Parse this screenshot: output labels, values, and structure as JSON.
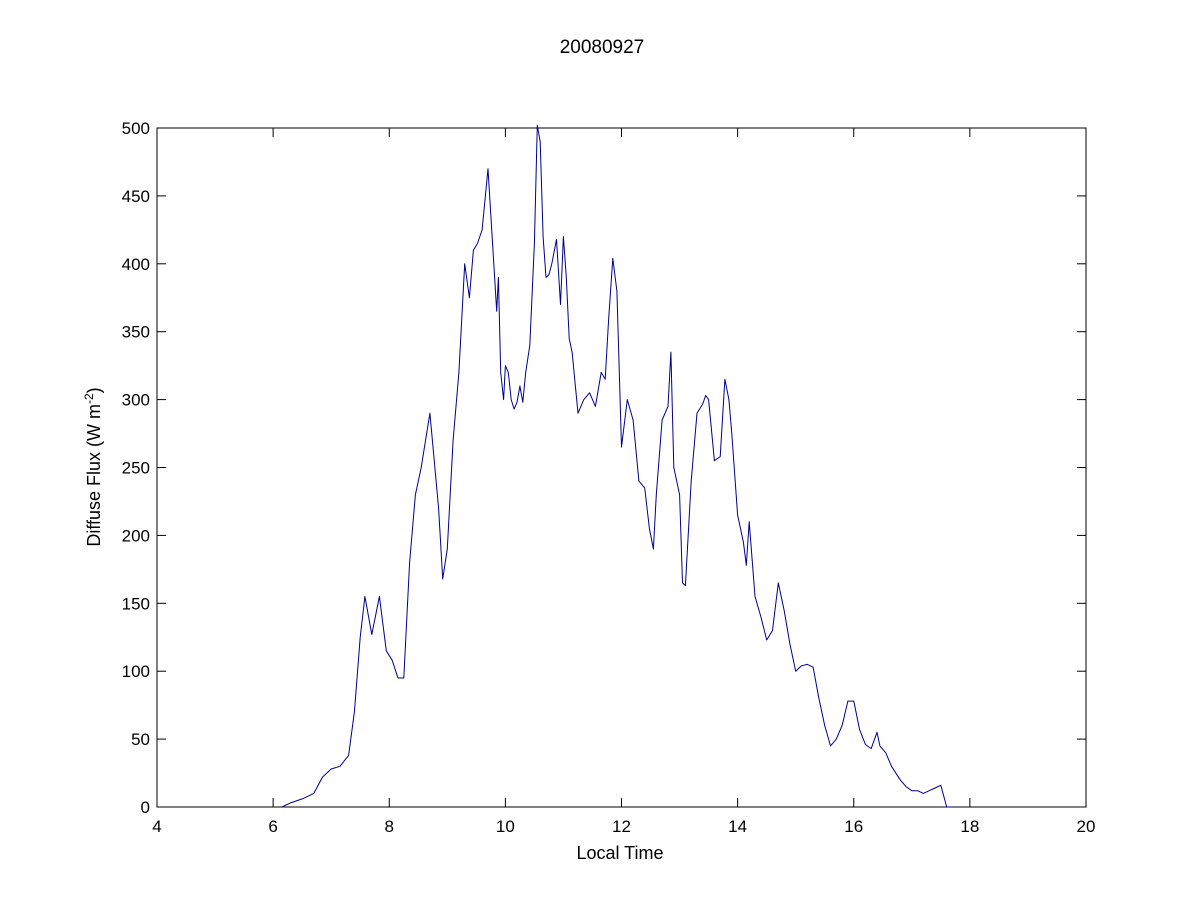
{
  "chart_data": {
    "type": "line",
    "title": "20080927",
    "xlabel": "Local Time",
    "ylabel": "Diffuse Flux (W m",
    "ylabel_sup": "-2",
    "ylabel_close": ")",
    "xlim": [
      4,
      20
    ],
    "ylim": [
      0,
      500
    ],
    "xticks": [
      4,
      6,
      8,
      10,
      12,
      14,
      16,
      18,
      20
    ],
    "yticks": [
      0,
      50,
      100,
      150,
      200,
      250,
      300,
      350,
      400,
      450,
      500
    ],
    "grid": false,
    "line_color": "#00008b",
    "series": [
      {
        "x": [
          6.15,
          6.3,
          6.5,
          6.7,
          6.85,
          7.0,
          7.15,
          7.3,
          7.4,
          7.5,
          7.58,
          7.7,
          7.83,
          7.95,
          8.05,
          8.15,
          8.25,
          8.35,
          8.45,
          8.55,
          8.7,
          8.85,
          8.92,
          9.0,
          9.1,
          9.2,
          9.3,
          9.38,
          9.45,
          9.52,
          9.6,
          9.7,
          9.8,
          9.85,
          9.88,
          9.92,
          9.97,
          10.0,
          10.05,
          10.1,
          10.15,
          10.2,
          10.25,
          10.3,
          10.35,
          10.42,
          10.5,
          10.55,
          10.6,
          10.65,
          10.7,
          10.75,
          10.8,
          10.88,
          10.95,
          11.0,
          11.05,
          11.1,
          11.15,
          11.25,
          11.35,
          11.45,
          11.55,
          11.65,
          11.72,
          11.78,
          11.85,
          11.92,
          12.0,
          12.1,
          12.2,
          12.3,
          12.4,
          12.48,
          12.55,
          12.6,
          12.7,
          12.8,
          12.85,
          12.9,
          13.0,
          13.05,
          13.1,
          13.2,
          13.3,
          13.4,
          13.45,
          13.5,
          13.6,
          13.7,
          13.78,
          13.85,
          13.9,
          14.0,
          14.1,
          14.15,
          14.2,
          14.3,
          14.4,
          14.5,
          14.6,
          14.7,
          14.8,
          14.9,
          15.0,
          15.1,
          15.2,
          15.3,
          15.4,
          15.5,
          15.6,
          15.7,
          15.8,
          15.9,
          16.0,
          16.1,
          16.2,
          16.3,
          16.4,
          16.45,
          16.55,
          16.65,
          16.8,
          16.9,
          17.0,
          17.1,
          17.2,
          17.3,
          17.4,
          17.5,
          17.6,
          17.67,
          17.7
        ],
        "y": [
          0,
          3,
          6,
          10,
          22,
          28,
          30,
          38,
          70,
          125,
          155,
          127,
          155,
          115,
          108,
          95,
          95,
          180,
          230,
          250,
          290,
          220,
          168,
          190,
          270,
          320,
          400,
          375,
          410,
          415,
          425,
          470,
          400,
          365,
          390,
          320,
          300,
          325,
          320,
          300,
          293,
          298,
          310,
          298,
          320,
          340,
          415,
          502,
          490,
          420,
          390,
          392,
          400,
          418,
          370,
          420,
          390,
          345,
          335,
          290,
          300,
          305,
          295,
          320,
          315,
          360,
          404,
          380,
          265,
          300,
          285,
          240,
          235,
          205,
          190,
          230,
          285,
          295,
          335,
          250,
          230,
          165,
          163,
          240,
          290,
          297,
          303,
          300,
          255,
          258,
          315,
          300,
          275,
          215,
          195,
          178,
          210,
          155,
          140,
          123,
          130,
          165,
          145,
          120,
          100,
          104,
          105,
          103,
          80,
          60,
          45,
          50,
          60,
          78,
          78,
          57,
          46,
          43,
          55,
          45,
          40,
          30,
          20,
          15,
          12,
          12,
          10,
          12,
          14,
          16,
          0,
          0,
          0
        ]
      }
    ]
  }
}
